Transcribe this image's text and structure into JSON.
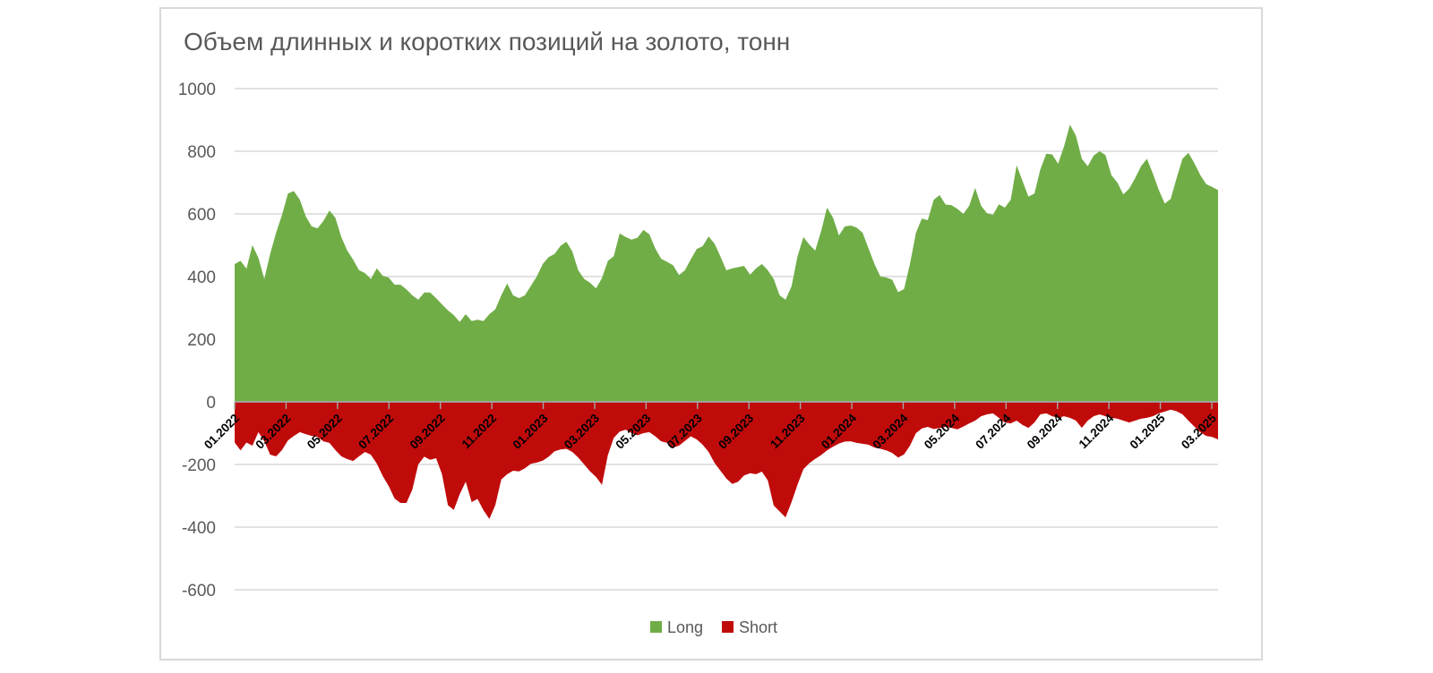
{
  "chart_data": {
    "type": "area",
    "title": "Объем длинных и коротких позиций на золото, тонн",
    "x_frequency": "weekly",
    "x_range": {
      "start": "01.2022",
      "end": "04.2025"
    },
    "x_tick_labels": [
      "01.2022",
      "03.2022",
      "05.2022",
      "07.2022",
      "09.2022",
      "11.2022",
      "01.2023",
      "03.2023",
      "05.2023",
      "07.2023",
      "09.2023",
      "11.2023",
      "01.2024",
      "03.2024",
      "05.2024",
      "07.2024",
      "09.2024",
      "11.2024",
      "01.2025",
      "03.2025"
    ],
    "ylim": [
      -600,
      1000
    ],
    "y_ticks": [
      1000,
      800,
      600,
      400,
      200,
      0,
      -200,
      -400,
      -600
    ],
    "grid": true,
    "legend_position": "bottom-center",
    "series": [
      {
        "name": "Long",
        "color": "#70ad47",
        "values": [
          440,
          450,
          425,
          500,
          460,
          392,
          473,
          540,
          597,
          665,
          673,
          645,
          592,
          560,
          554,
          578,
          611,
          588,
          526,
          483,
          454,
          420,
          411,
          392,
          426,
          402,
          397,
          374,
          374,
          359,
          340,
          326,
          349,
          349,
          331,
          311,
          292,
          277,
          255,
          280,
          258,
          262,
          258,
          280,
          295,
          340,
          378,
          340,
          331,
          340,
          370,
          400,
          440,
          462,
          472,
          498,
          511,
          480,
          420,
          392,
          380,
          362,
          395,
          450,
          465,
          538,
          526,
          518,
          524,
          549,
          535,
          490,
          457,
          447,
          436,
          405,
          420,
          455,
          488,
          497,
          528,
          505,
          464,
          420,
          426,
          430,
          434,
          406,
          426,
          440,
          420,
          392,
          340,
          326,
          369,
          464,
          526,
          502,
          483,
          545,
          620,
          588,
          531,
          560,
          563,
          556,
          540,
          490,
          440,
          400,
          397,
          390,
          350,
          360,
          440,
          540,
          585,
          580,
          645,
          660,
          630,
          628,
          616,
          600,
          626,
          683,
          626,
          602,
          597,
          631,
          620,
          645,
          755,
          705,
          655,
          665,
          742,
          792,
          790,
          760,
          815,
          885,
          850,
          776,
          752,
          786,
          800,
          788,
          724,
          700,
          662,
          681,
          714,
          752,
          776,
          729,
          676,
          633,
          648,
          714,
          776,
          795,
          762,
          724,
          695,
          686,
          676
        ]
      },
      {
        "name": "Short",
        "color": "#c00b0b",
        "values": [
          -130,
          -155,
          -130,
          -140,
          -97,
          -126,
          -169,
          -174,
          -154,
          -123,
          -109,
          -97,
          -103,
          -109,
          -112,
          -126,
          -131,
          -154,
          -174,
          -183,
          -189,
          -174,
          -160,
          -169,
          -197,
          -237,
          -269,
          -309,
          -323,
          -323,
          -280,
          -200,
          -175,
          -185,
          -180,
          -231,
          -330,
          -345,
          -295,
          -255,
          -320,
          -310,
          -346,
          -374,
          -330,
          -248,
          -231,
          -220,
          -222,
          -212,
          -198,
          -194,
          -188,
          -175,
          -158,
          -152,
          -150,
          -160,
          -178,
          -200,
          -222,
          -240,
          -265,
          -170,
          -115,
          -95,
          -89,
          -100,
          -107,
          -100,
          -97,
          -110,
          -126,
          -131,
          -146,
          -140,
          -125,
          -110,
          -120,
          -137,
          -160,
          -195,
          -220,
          -245,
          -262,
          -255,
          -235,
          -228,
          -231,
          -223,
          -251,
          -331,
          -350,
          -369,
          -320,
          -265,
          -215,
          -196,
          -182,
          -170,
          -155,
          -143,
          -133,
          -127,
          -126,
          -131,
          -134,
          -137,
          -146,
          -150,
          -155,
          -163,
          -178,
          -168,
          -140,
          -100,
          -85,
          -80,
          -87,
          -84,
          -80,
          -83,
          -88,
          -79,
          -69,
          -60,
          -46,
          -40,
          -37,
          -51,
          -66,
          -69,
          -60,
          -74,
          -83,
          -66,
          -40,
          -37,
          -46,
          -51,
          -46,
          -51,
          -60,
          -83,
          -60,
          -46,
          -40,
          -46,
          -51,
          -54,
          -60,
          -66,
          -60,
          -54,
          -51,
          -46,
          -37,
          -31,
          -25,
          -30,
          -40,
          -60,
          -79,
          -97,
          -109,
          -112,
          -120
        ]
      }
    ]
  },
  "styles": {
    "title_color": "#595959",
    "axis_label_color": "#595959",
    "x_label_color": "#000000",
    "gridline_color": "#d9d9d9",
    "axis_line_color": "#a6a6a6",
    "frame_border_color": "#d9d9d9",
    "background": "#ffffff"
  }
}
